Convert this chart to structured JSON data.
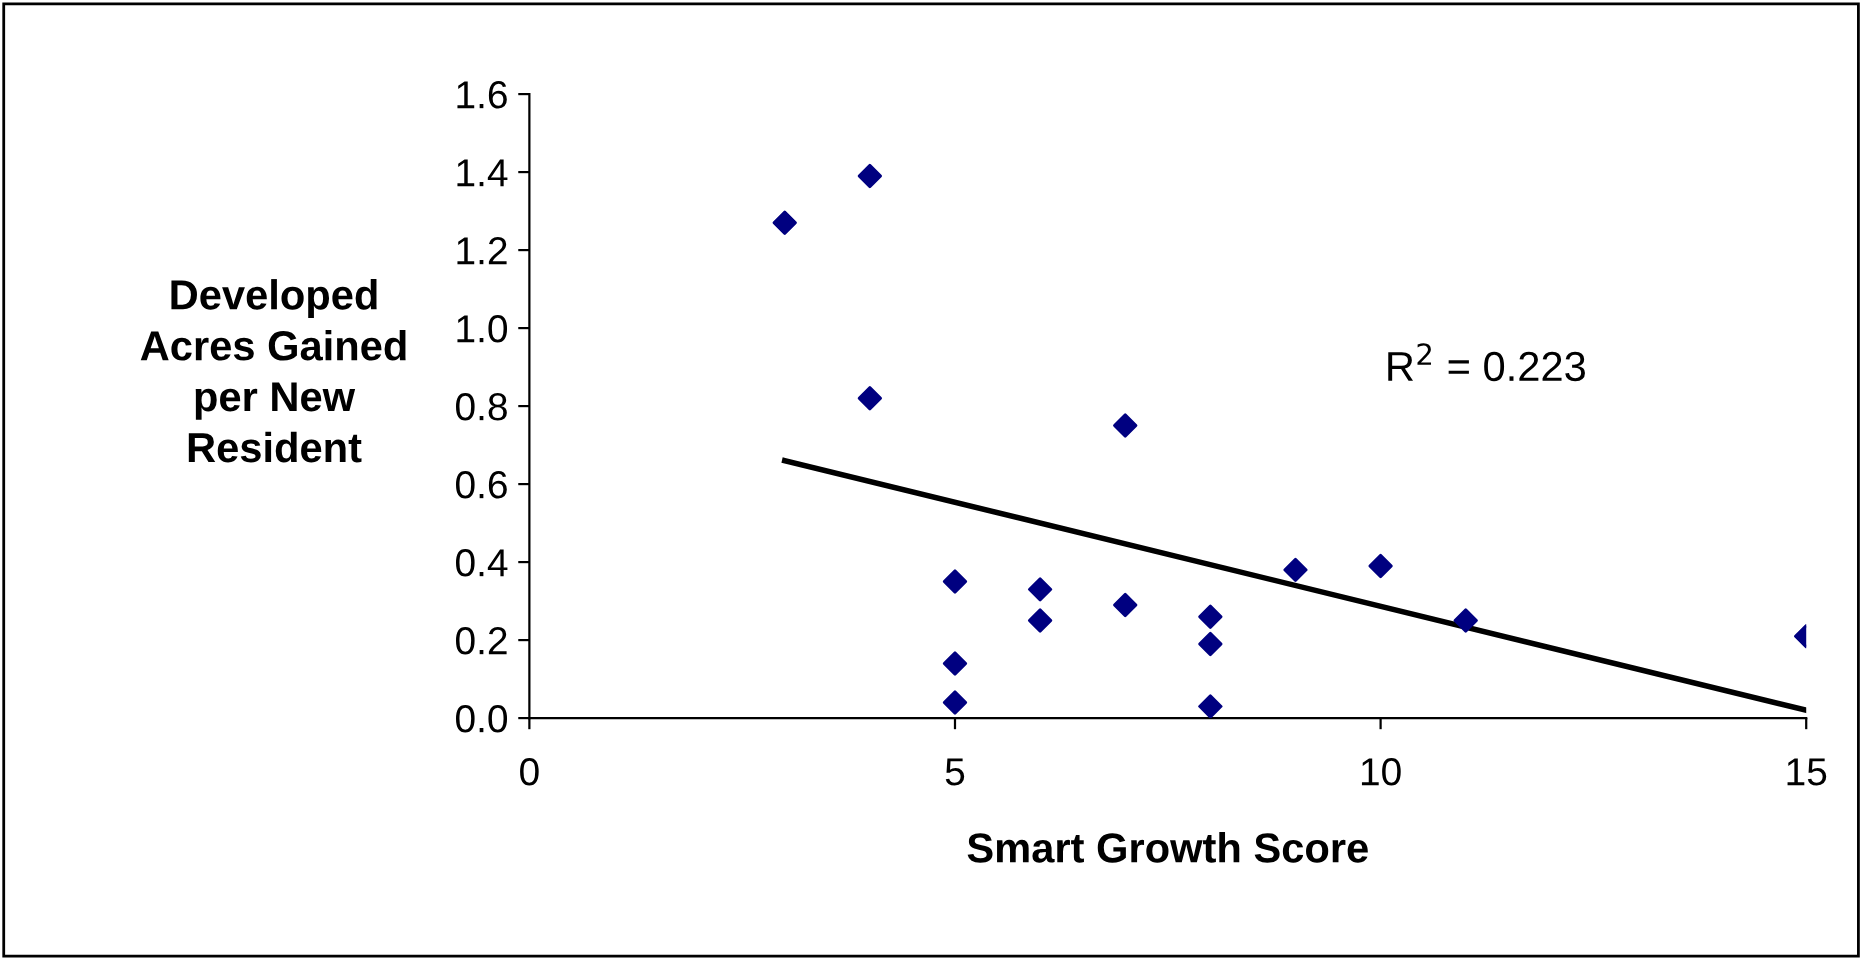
{
  "chart_data": {
    "type": "scatter",
    "xlabel": "Smart Growth Score",
    "ylabel": "Developed\nAcres Gained\nper New\nResident",
    "xlim": [
      0,
      15
    ],
    "xticks": [
      0,
      5,
      10,
      15
    ],
    "ylim": [
      0,
      1.6
    ],
    "yticks": [
      {
        "value": 0,
        "label": "0.0"
      },
      {
        "value": 0.2,
        "label": "0.2"
      },
      {
        "value": 0.4,
        "label": "0.4"
      },
      {
        "value": 0.6,
        "label": "0.6"
      },
      {
        "value": 0.8,
        "label": "0.8"
      },
      {
        "value": 1,
        "label": "1.0"
      },
      {
        "value": 1.2,
        "label": "1.2"
      },
      {
        "value": 1.4,
        "label": "1.4"
      },
      {
        "value": 1.6,
        "label": "1.6"
      }
    ],
    "marker": "diamond",
    "grid": false,
    "legend": false,
    "series": [
      {
        "color": "#000080",
        "x": [
          3,
          4,
          4,
          5,
          5,
          5,
          6,
          6,
          7,
          7,
          8,
          8,
          8,
          9,
          10,
          11,
          15
        ],
        "values": [
          1.27,
          1.39,
          0.82,
          0.35,
          0.14,
          0.04,
          0.33,
          0.25,
          0.75,
          0.29,
          0.26,
          0.19,
          0.03,
          0.38,
          0.39,
          0.25,
          0.21
        ]
      },
      {
        "type": "line",
        "color": "#000000",
        "x": [
          3,
          15
        ],
        "values": [
          0.66,
          0.02
        ],
        "marker": "none"
      }
    ],
    "annotations": [
      "R$^{2}$ = 0.223"
    ]
  }
}
